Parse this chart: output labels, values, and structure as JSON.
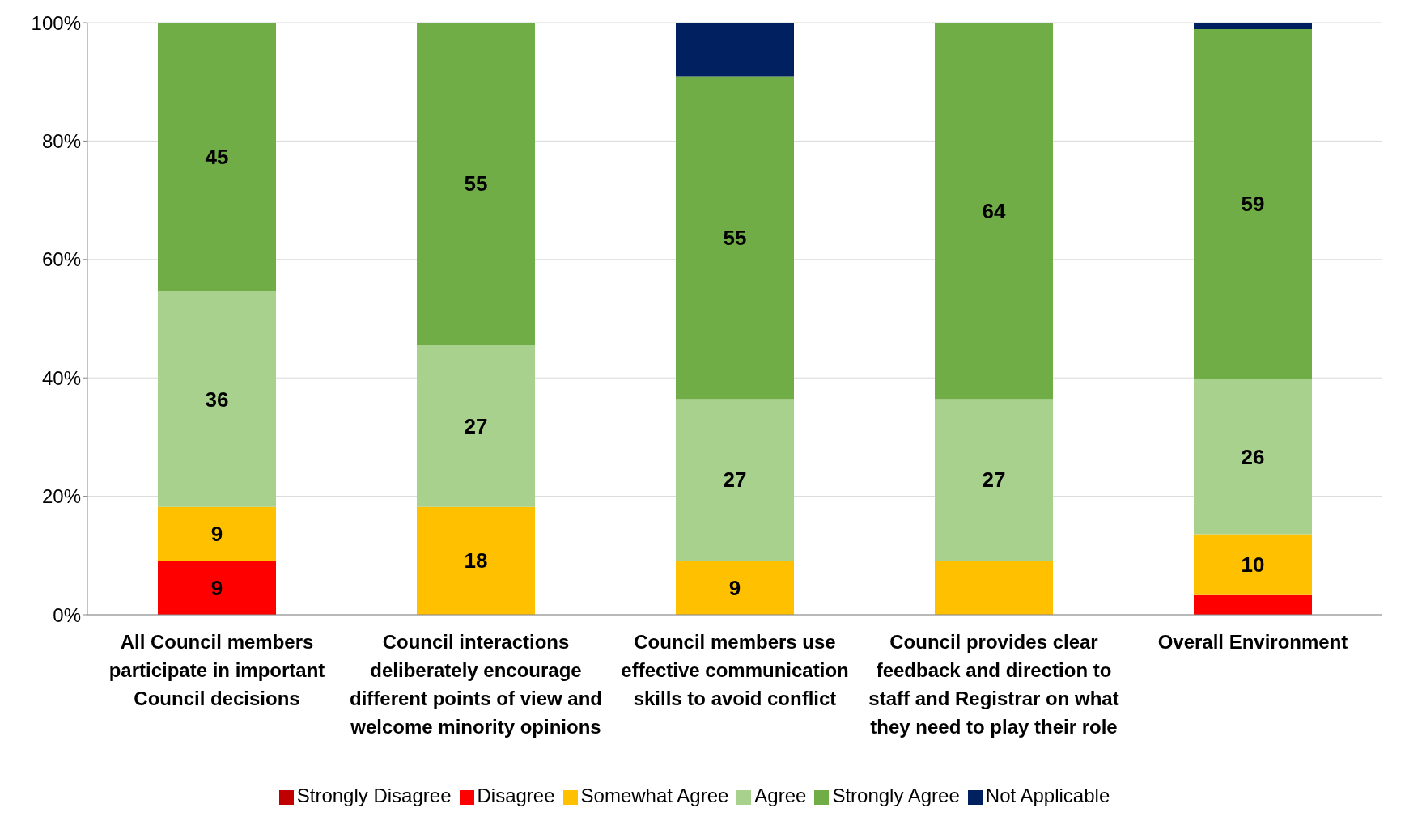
{
  "chart_data": {
    "type": "bar",
    "stacked": true,
    "categories": [
      "All Council members participate in important Council decisions",
      "Council interactions deliberately encourage different points of view and welcome minority opinions",
      "Council members use effective communication skills to avoid conflict",
      "Council provides clear feedback and direction to staff and Registrar on what they need to play their role",
      "Overall Environment"
    ],
    "series": [
      {
        "name": "Strongly Disagree",
        "color": "#c00000",
        "values": [
          null,
          null,
          null,
          null,
          null
        ],
        "value_labels": [
          null,
          null,
          null,
          null,
          null
        ]
      },
      {
        "name": "Disagree",
        "color": "#ff0000",
        "values": [
          9.1,
          null,
          null,
          null,
          3.3
        ],
        "value_labels": [
          "9",
          null,
          null,
          null,
          null
        ]
      },
      {
        "name": "Somewhat Agree",
        "color": "#ffc000",
        "values": [
          9.1,
          18.2,
          9.1,
          9.1,
          10.3
        ],
        "value_labels": [
          "9",
          "18",
          "9",
          null,
          "10"
        ]
      },
      {
        "name": "Agree",
        "color": "#a9d18e",
        "values": [
          36.4,
          27.3,
          27.3,
          27.3,
          26.2
        ],
        "value_labels": [
          "36",
          "27",
          "27",
          "27",
          "26"
        ]
      },
      {
        "name": "Strongly Agree",
        "color": "#70ad47",
        "values": [
          45.4,
          54.5,
          54.5,
          63.6,
          59.1
        ],
        "value_labels": [
          "45",
          "55",
          "55",
          "64",
          "59"
        ]
      },
      {
        "name": "Not Applicable",
        "color": "#002060",
        "values": [
          null,
          null,
          9.1,
          null,
          1.1
        ],
        "value_labels": [
          null,
          null,
          null,
          null,
          null
        ]
      }
    ],
    "ylim": [
      0,
      100
    ],
    "yticks": [
      {
        "value": 0,
        "label": "0%"
      },
      {
        "value": 20,
        "label": "20%"
      },
      {
        "value": 40,
        "label": "40%"
      },
      {
        "value": 60,
        "label": "60%"
      },
      {
        "value": 80,
        "label": "80%"
      },
      {
        "value": 100,
        "label": "100%"
      }
    ],
    "grid": "y",
    "legend": "bottom"
  }
}
